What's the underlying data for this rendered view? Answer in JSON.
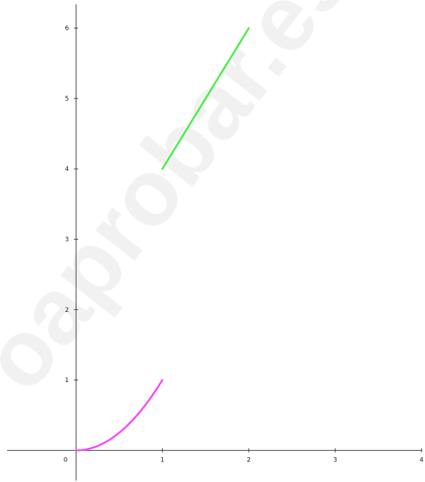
{
  "watermark": "oaprobar.es",
  "chart_data": {
    "type": "line",
    "xlim": [
      -0.88,
      4.04
    ],
    "ylim": [
      -0.45,
      6.4
    ],
    "x_ticks": [
      0,
      1,
      2,
      3,
      4
    ],
    "y_ticks": [
      1,
      2,
      3,
      4,
      5,
      6
    ],
    "origin_label": "0",
    "grid": false,
    "series": [
      {
        "color": "#ff40ff",
        "function": "x^2",
        "x": [
          0,
          0.1,
          0.2,
          0.3,
          0.4,
          0.5,
          0.6,
          0.7,
          0.8,
          0.9,
          1.0
        ],
        "y": [
          0,
          0.01,
          0.04,
          0.09,
          0.16,
          0.25,
          0.36,
          0.49,
          0.64,
          0.81,
          1.0
        ]
      },
      {
        "color": "#44ee44",
        "function": "2x+2",
        "x": [
          1,
          2
        ],
        "y": [
          4,
          6
        ]
      }
    ]
  }
}
